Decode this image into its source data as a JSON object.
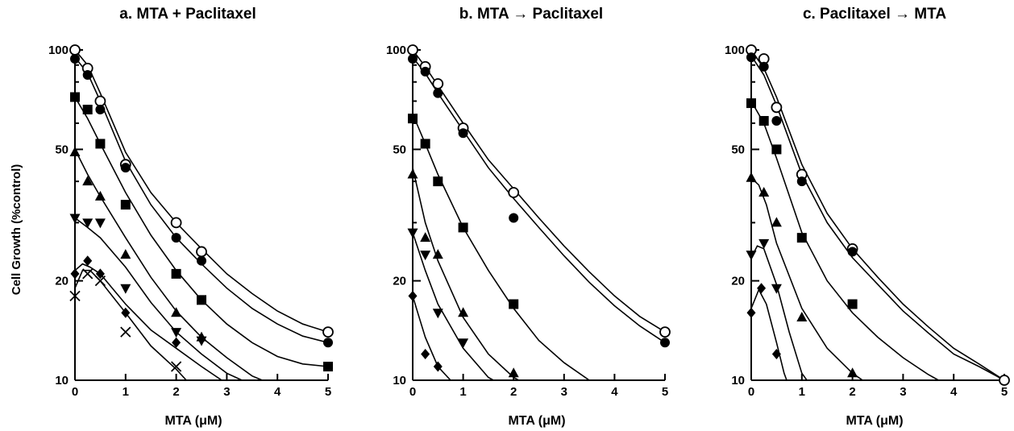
{
  "chart_data": [
    {
      "type": "scatter",
      "title": "a. MTA  + Paclitaxel",
      "xlabel": "MTA (μM)",
      "ylabel": "Cell Growth (%control)",
      "yscale": "log",
      "xlim": [
        0,
        5
      ],
      "ylim": [
        10,
        100
      ],
      "xticks": [
        "0",
        "1",
        "2",
        "3",
        "4",
        "5"
      ],
      "yticks": [
        "10",
        "20",
        "50",
        "100"
      ],
      "series": [
        {
          "marker": "open-circle",
          "x": [
            0,
            0.25,
            0.5,
            1,
            2,
            2.5,
            5
          ],
          "y": [
            100,
            88,
            70,
            45,
            30,
            24.5,
            14
          ],
          "curve": [
            [
              0,
              100
            ],
            [
              0.25,
              90
            ],
            [
              0.5,
              74
            ],
            [
              1,
              49
            ],
            [
              1.5,
              37
            ],
            [
              2,
              30
            ],
            [
              2.5,
              25
            ],
            [
              3,
              21
            ],
            [
              3.5,
              18.3
            ],
            [
              4,
              16.2
            ],
            [
              4.5,
              14.8
            ],
            [
              5,
              14
            ]
          ]
        },
        {
          "marker": "filled-circle",
          "x": [
            0,
            0.25,
            0.5,
            1,
            2,
            2.5,
            5
          ],
          "y": [
            94,
            84,
            66,
            44,
            27,
            23,
            13
          ],
          "curve": [
            [
              0,
              95
            ],
            [
              0.25,
              85
            ],
            [
              0.5,
              70
            ],
            [
              1,
              46
            ],
            [
              1.5,
              34
            ],
            [
              2,
              27
            ],
            [
              2.5,
              22.5
            ],
            [
              3,
              19
            ],
            [
              3.5,
              16.5
            ],
            [
              4,
              14.8
            ],
            [
              4.5,
              13.6
            ],
            [
              5,
              13
            ]
          ]
        },
        {
          "marker": "filled-square",
          "x": [
            0,
            0.25,
            0.5,
            1,
            2,
            2.5,
            5
          ],
          "y": [
            72,
            66,
            52,
            34,
            21,
            17.5,
            11
          ],
          "curve": [
            [
              0,
              72
            ],
            [
              0.25,
              62
            ],
            [
              0.5,
              52
            ],
            [
              1,
              37
            ],
            [
              1.5,
              27.5
            ],
            [
              2,
              21.5
            ],
            [
              2.5,
              17.5
            ],
            [
              3,
              14.8
            ],
            [
              3.5,
              13
            ],
            [
              4,
              11.8
            ],
            [
              4.5,
              11.2
            ],
            [
              5,
              11
            ]
          ]
        },
        {
          "marker": "filled-triangle-up",
          "x": [
            0,
            0.25,
            0.5,
            1,
            2,
            2.5
          ],
          "y": [
            49,
            40,
            36,
            24,
            16,
            13.5
          ],
          "curve": [
            [
              0,
              50
            ],
            [
              0.25,
              42
            ],
            [
              0.5,
              36
            ],
            [
              1,
              27
            ],
            [
              1.5,
              20.5
            ],
            [
              2,
              16.2
            ],
            [
              2.5,
              13.5
            ],
            [
              3,
              11.7
            ],
            [
              3.5,
              10.3
            ],
            [
              3.7,
              10
            ]
          ]
        },
        {
          "marker": "filled-triangle-down",
          "x": [
            0,
            0.25,
            0.5,
            1,
            2,
            2.5
          ],
          "y": [
            31,
            30,
            30,
            19,
            14,
            13.2
          ],
          "curve": [
            [
              0,
              31
            ],
            [
              0.25,
              29
            ],
            [
              0.5,
              27
            ],
            [
              1,
              22
            ],
            [
              1.5,
              17.2
            ],
            [
              2,
              14
            ],
            [
              2.5,
              12
            ],
            [
              3,
              10.5
            ],
            [
              3.3,
              10
            ]
          ]
        },
        {
          "marker": "filled-diamond",
          "x": [
            0,
            0.25,
            0.5,
            1,
            2
          ],
          "y": [
            21,
            23,
            21,
            16,
            13
          ],
          "curve": [
            [
              0,
              21.5
            ],
            [
              0.15,
              22.5
            ],
            [
              0.3,
              22
            ],
            [
              0.5,
              21
            ],
            [
              1,
              17
            ],
            [
              1.5,
              14.2
            ],
            [
              2,
              12.5
            ],
            [
              2.5,
              11
            ],
            [
              2.9,
              10
            ]
          ]
        },
        {
          "marker": "cross",
          "x": [
            0,
            0.25,
            0.5,
            1,
            2
          ],
          "y": [
            18,
            21,
            20,
            14,
            11
          ],
          "curve": [
            [
              0,
              19
            ],
            [
              0.15,
              21.5
            ],
            [
              0.3,
              21.5
            ],
            [
              0.5,
              20
            ],
            [
              1,
              16
            ],
            [
              1.5,
              12.7
            ],
            [
              2,
              10.8
            ],
            [
              2.2,
              10
            ]
          ]
        }
      ]
    },
    {
      "type": "scatter",
      "title": "b. MTA → Paclitaxel",
      "xlabel": "MTA (μM)",
      "ylabel": "",
      "yscale": "log",
      "xlim": [
        0,
        5
      ],
      "ylim": [
        10,
        100
      ],
      "xticks": [
        "0",
        "1",
        "2",
        "3",
        "4",
        "5"
      ],
      "yticks": [
        "10",
        "20",
        "50",
        "100"
      ],
      "series": [
        {
          "marker": "open-circle",
          "x": [
            0,
            0.25,
            0.5,
            1,
            2,
            5
          ],
          "y": [
            100,
            89,
            79,
            58,
            37,
            14
          ],
          "curve": [
            [
              0,
              100
            ],
            [
              0.25,
              89
            ],
            [
              0.5,
              78
            ],
            [
              1,
              60
            ],
            [
              1.5,
              46.5
            ],
            [
              2,
              38
            ],
            [
              2.5,
              31
            ],
            [
              3,
              25.5
            ],
            [
              3.5,
              21.3
            ],
            [
              4,
              18
            ],
            [
              4.5,
              15.6
            ],
            [
              5,
              14
            ]
          ]
        },
        {
          "marker": "filled-circle",
          "x": [
            0,
            0.25,
            0.5,
            1,
            2,
            5
          ],
          "y": [
            94,
            86,
            74,
            56,
            31,
            13
          ],
          "curve": [
            [
              0,
              95
            ],
            [
              0.25,
              85
            ],
            [
              0.5,
              74
            ],
            [
              1,
              57
            ],
            [
              1.5,
              44
            ],
            [
              2,
              35.5
            ],
            [
              2.5,
              29
            ],
            [
              3,
              23.8
            ],
            [
              3.5,
              19.8
            ],
            [
              4,
              16.8
            ],
            [
              4.5,
              14.6
            ],
            [
              5,
              13
            ]
          ]
        },
        {
          "marker": "filled-square",
          "x": [
            0,
            0.25,
            0.5,
            1,
            2
          ],
          "y": [
            62,
            52,
            40,
            29,
            17
          ],
          "curve": [
            [
              0,
              64
            ],
            [
              0.25,
              52
            ],
            [
              0.5,
              42
            ],
            [
              1,
              29
            ],
            [
              1.5,
              21.5
            ],
            [
              2,
              16.5
            ],
            [
              2.5,
              13.2
            ],
            [
              3,
              11.3
            ],
            [
              3.5,
              10
            ]
          ]
        },
        {
          "marker": "filled-triangle-up",
          "x": [
            0,
            0.25,
            0.5,
            1,
            2
          ],
          "y": [
            42,
            27,
            24,
            16,
            10.5
          ],
          "curve": [
            [
              0,
              44
            ],
            [
              0.25,
              30
            ],
            [
              0.5,
              23
            ],
            [
              1,
              15.5
            ],
            [
              1.5,
              12
            ],
            [
              2,
              10.2
            ],
            [
              2.1,
              10
            ]
          ]
        },
        {
          "marker": "filled-triangle-down",
          "x": [
            0,
            0.25,
            0.5,
            1
          ],
          "y": [
            28,
            24,
            16,
            13
          ],
          "curve": [
            [
              0,
              28
            ],
            [
              0.25,
              21.5
            ],
            [
              0.5,
              17
            ],
            [
              1,
              12.5
            ],
            [
              1.5,
              10.2
            ],
            [
              1.6,
              10
            ]
          ]
        },
        {
          "marker": "filled-diamond",
          "x": [
            0,
            0.25,
            0.5
          ],
          "y": [
            18,
            12,
            11
          ],
          "curve": [
            [
              0,
              18
            ],
            [
              0.1,
              16
            ],
            [
              0.25,
              13.5
            ],
            [
              0.5,
              11
            ],
            [
              0.75,
              10
            ]
          ]
        }
      ]
    },
    {
      "type": "scatter",
      "title": "c. Paclitaxel → MTA",
      "xlabel": "MTA (μM)",
      "ylabel": "",
      "yscale": "log",
      "xlim": [
        0,
        5
      ],
      "ylim": [
        10,
        100
      ],
      "xticks": [
        "0",
        "1",
        "2",
        "3",
        "4",
        "5"
      ],
      "yticks": [
        "10",
        "20",
        "50",
        "100"
      ],
      "series": [
        {
          "marker": "open-circle",
          "x": [
            0,
            0.25,
            0.5,
            1,
            2,
            5
          ],
          "y": [
            100,
            94,
            67,
            42,
            25,
            10
          ],
          "curve": [
            [
              0,
              100
            ],
            [
              0.25,
              88
            ],
            [
              0.5,
              72
            ],
            [
              1,
              45
            ],
            [
              1.5,
              32
            ],
            [
              2,
              25
            ],
            [
              2.5,
              20.5
            ],
            [
              3,
              17
            ],
            [
              3.5,
              14.5
            ],
            [
              4,
              12.5
            ],
            [
              4.5,
              11.2
            ],
            [
              5,
              10
            ]
          ]
        },
        {
          "marker": "filled-circle",
          "x": [
            0,
            0.25,
            0.5,
            1,
            2
          ],
          "y": [
            95,
            89,
            61,
            40,
            24.5
          ],
          "curve": [
            [
              0,
              96
            ],
            [
              0.25,
              84
            ],
            [
              0.5,
              68
            ],
            [
              1,
              42
            ],
            [
              1.5,
              30
            ],
            [
              2,
              23.5
            ],
            [
              2.5,
              19.5
            ],
            [
              3,
              16.2
            ],
            [
              3.5,
              13.9
            ],
            [
              4,
              12
            ],
            [
              4.5,
              11
            ],
            [
              5,
              10
            ]
          ]
        },
        {
          "marker": "filled-square",
          "x": [
            0,
            0.25,
            0.5,
            1,
            2
          ],
          "y": [
            69,
            61,
            50,
            27,
            17
          ],
          "curve": [
            [
              0,
              70
            ],
            [
              0.25,
              60
            ],
            [
              0.5,
              47
            ],
            [
              1,
              28
            ],
            [
              1.5,
              20
            ],
            [
              2,
              16
            ],
            [
              2.5,
              13.5
            ],
            [
              3,
              11.7
            ],
            [
              3.5,
              10.4
            ],
            [
              3.7,
              10
            ]
          ]
        },
        {
          "marker": "filled-triangle-up",
          "x": [
            0,
            0.25,
            0.5,
            1,
            2
          ],
          "y": [
            41,
            37,
            30,
            15.5,
            10.5
          ],
          "curve": [
            [
              0,
              41
            ],
            [
              0.15,
              39
            ],
            [
              0.3,
              34
            ],
            [
              0.5,
              26
            ],
            [
              1,
              16.5
            ],
            [
              1.5,
              12.5
            ],
            [
              2,
              10.5
            ],
            [
              2.2,
              10
            ]
          ]
        },
        {
          "marker": "filled-triangle-down",
          "x": [
            0,
            0.25,
            0.5
          ],
          "y": [
            24,
            26,
            19
          ],
          "curve": [
            [
              0,
              23.5
            ],
            [
              0.12,
              25.5
            ],
            [
              0.25,
              25
            ],
            [
              0.5,
              19.5
            ],
            [
              0.75,
              14
            ],
            [
              1,
              10.5
            ],
            [
              1.1,
              10
            ]
          ]
        },
        {
          "marker": "filled-diamond",
          "x": [
            0,
            0.2,
            0.5
          ],
          "y": [
            16,
            19,
            12
          ],
          "curve": [
            [
              0,
              16.5
            ],
            [
              0.15,
              18.8
            ],
            [
              0.3,
              17
            ],
            [
              0.5,
              13
            ],
            [
              0.65,
              10.5
            ],
            [
              0.7,
              10
            ]
          ]
        }
      ]
    }
  ]
}
